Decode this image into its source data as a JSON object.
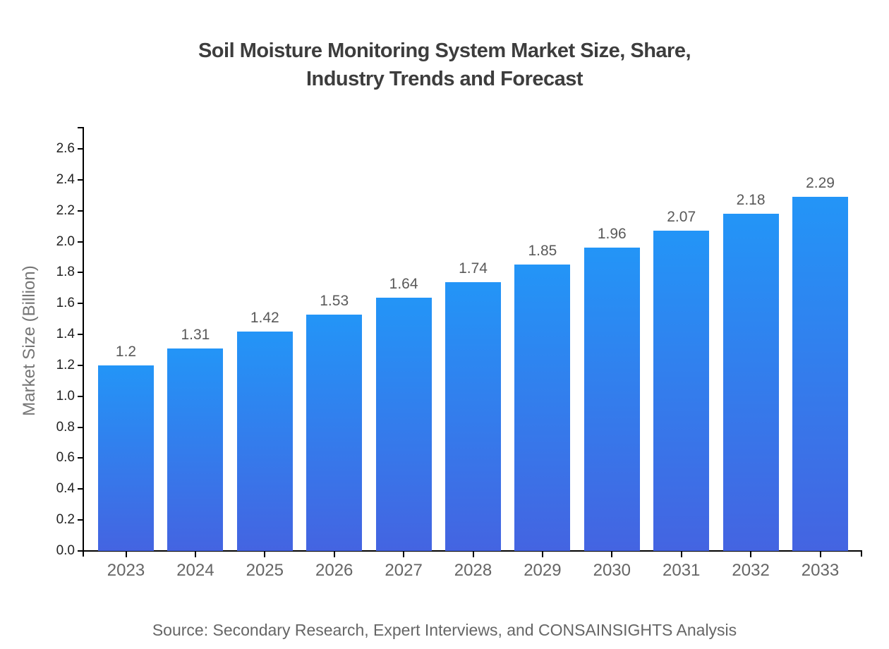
{
  "header": {
    "title_line1": "Soil Moisture Monitoring System Market Size, Share,",
    "title_line2": "Industry Trends and Forecast"
  },
  "footer": {
    "source": "Source: Secondary Research, Expert Interviews, and CONSAINSIGHTS Analysis"
  },
  "chart_data": {
    "type": "bar",
    "title": "Soil Moisture Monitoring System Market Size, Share, Industry Trends and Forecast",
    "categories": [
      "2023",
      "2024",
      "2025",
      "2026",
      "2027",
      "2028",
      "2029",
      "2030",
      "2031",
      "2032",
      "2033"
    ],
    "values": [
      1.2,
      1.31,
      1.42,
      1.53,
      1.64,
      1.74,
      1.85,
      1.96,
      2.07,
      2.18,
      2.29
    ],
    "bar_labels": [
      "1.2",
      "1.31",
      "1.42",
      "1.53",
      "1.64",
      "1.74",
      "1.85",
      "1.96",
      "2.07",
      "2.18",
      "2.29"
    ],
    "xlabel": "",
    "ylabel": "Market Size (Billion)",
    "y_ticks": [
      "0.0",
      "0.2",
      "0.4",
      "0.6",
      "0.8",
      "1.0",
      "1.2",
      "1.4",
      "1.6",
      "1.8",
      "2.0",
      "2.2",
      "2.4",
      "2.6"
    ],
    "ylim": [
      0,
      2.7
    ],
    "grid": false,
    "legend": "none",
    "colors": {
      "bar_gradient_top": "#2395f7",
      "bar_gradient_bottom": "#4464e1",
      "axis": "#000000",
      "tick_label": "#222222",
      "category_label": "#666666",
      "value_label": "#595959",
      "title": "#3d3d3d",
      "source": "#666666"
    }
  }
}
